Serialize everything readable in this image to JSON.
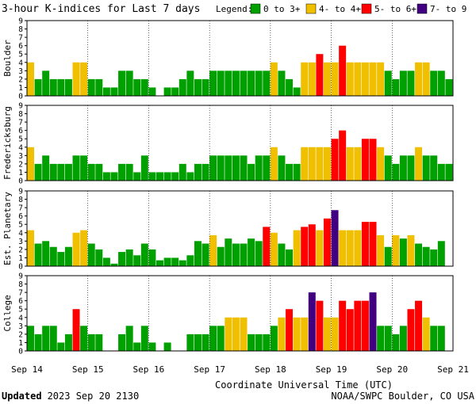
{
  "title": "3-hour K-indices for Last 7 days",
  "legend": {
    "label": "Legend:",
    "items": [
      {
        "label": "0 to 3+",
        "color": "#00a000"
      },
      {
        "label": "4- to 4+",
        "color": "#f0c000"
      },
      {
        "label": "5- to 6+",
        "color": "#ff0000"
      },
      {
        "label": "7- to 9",
        "color": "#400080"
      }
    ]
  },
  "x_labels": [
    "Sep 14",
    "Sep 15",
    "Sep 16",
    "Sep 17",
    "Sep 18",
    "Sep 19",
    "Sep 20",
    "Sep 21"
  ],
  "x_axis_title": "Coordinate Universal Time (UTC)",
  "footer_left_bold": "Updated",
  "footer_left": "2023 Sep 20 2130",
  "footer_right": "NOAA/SWPC Boulder, CO USA",
  "chart_data": [
    {
      "type": "bar",
      "title": "Boulder",
      "ylabel": "Boulder",
      "ylim": [
        0,
        9
      ],
      "y_ticks": [
        "0",
        "1",
        "2",
        "3",
        "4",
        "5",
        "6",
        "7",
        "8",
        "9"
      ],
      "values": [
        4,
        2,
        3,
        2,
        2,
        2,
        4,
        4,
        2,
        2,
        1,
        1,
        3,
        3,
        2,
        2,
        1,
        0,
        1,
        1,
        2,
        3,
        2,
        2,
        3,
        3,
        3,
        3,
        3,
        3,
        3,
        3,
        4,
        3,
        2,
        1,
        4,
        4,
        5,
        4,
        4,
        6,
        4,
        4,
        4,
        4,
        4,
        3,
        2,
        3,
        3,
        4,
        4,
        3,
        3,
        2,
        0
      ]
    },
    {
      "type": "bar",
      "title": "Fredericksburg",
      "ylabel": "Fredericksburg",
      "ylim": [
        0,
        9
      ],
      "y_ticks": [
        "0",
        "1",
        "2",
        "3",
        "4",
        "5",
        "6",
        "7",
        "8",
        "9"
      ],
      "values": [
        4,
        2,
        3,
        2,
        2,
        2,
        3,
        3,
        2,
        2,
        1,
        1,
        2,
        2,
        1,
        3,
        1,
        1,
        1,
        1,
        2,
        1,
        2,
        2,
        3,
        3,
        3,
        3,
        3,
        2,
        3,
        3,
        4,
        3,
        2,
        2,
        4,
        4,
        4,
        4,
        5,
        6,
        4,
        4,
        5,
        5,
        4,
        3,
        2,
        3,
        3,
        4,
        3,
        3,
        2,
        2,
        0
      ]
    },
    {
      "type": "bar",
      "title": "Est. Planetary",
      "ylabel": "Est. Planetary",
      "ylim": [
        0,
        9
      ],
      "y_ticks": [
        "0",
        "1",
        "2",
        "3",
        "4",
        "5",
        "6",
        "7",
        "8",
        "9"
      ],
      "values": [
        4.3,
        2.7,
        3,
        2.3,
        1.7,
        2.3,
        4,
        4.3,
        2.7,
        2,
        1,
        0.3,
        1.7,
        2,
        1.3,
        2.7,
        2,
        0.7,
        1,
        1,
        0.7,
        1.3,
        3,
        2.7,
        3.7,
        2.3,
        3.3,
        2.7,
        2.7,
        3.3,
        3,
        4.7,
        4,
        2.7,
        2,
        4.3,
        4.7,
        5,
        4.3,
        5.7,
        6.7,
        4.3,
        4.3,
        4.3,
        5.3,
        5.3,
        3.7,
        2.3,
        3.7,
        3.3,
        3.7,
        2.7,
        2.3,
        2,
        3,
        0
      ]
    },
    {
      "type": "bar",
      "title": "College",
      "ylabel": "College",
      "ylim": [
        0,
        9
      ],
      "y_ticks": [
        "0",
        "1",
        "2",
        "3",
        "4",
        "5",
        "6",
        "7",
        "8",
        "9"
      ],
      "values": [
        3,
        2,
        3,
        3,
        1,
        2,
        5,
        3,
        2,
        2,
        0,
        0,
        2,
        3,
        1,
        3,
        1,
        0,
        1,
        0,
        0,
        2,
        2,
        2,
        3,
        3,
        4,
        4,
        4,
        2,
        2,
        2,
        3,
        4,
        5,
        4,
        4,
        7,
        6,
        4,
        4,
        6,
        5,
        6,
        6,
        7,
        3,
        3,
        2,
        3,
        5,
        6,
        4,
        3,
        3,
        0,
        0
      ]
    }
  ]
}
